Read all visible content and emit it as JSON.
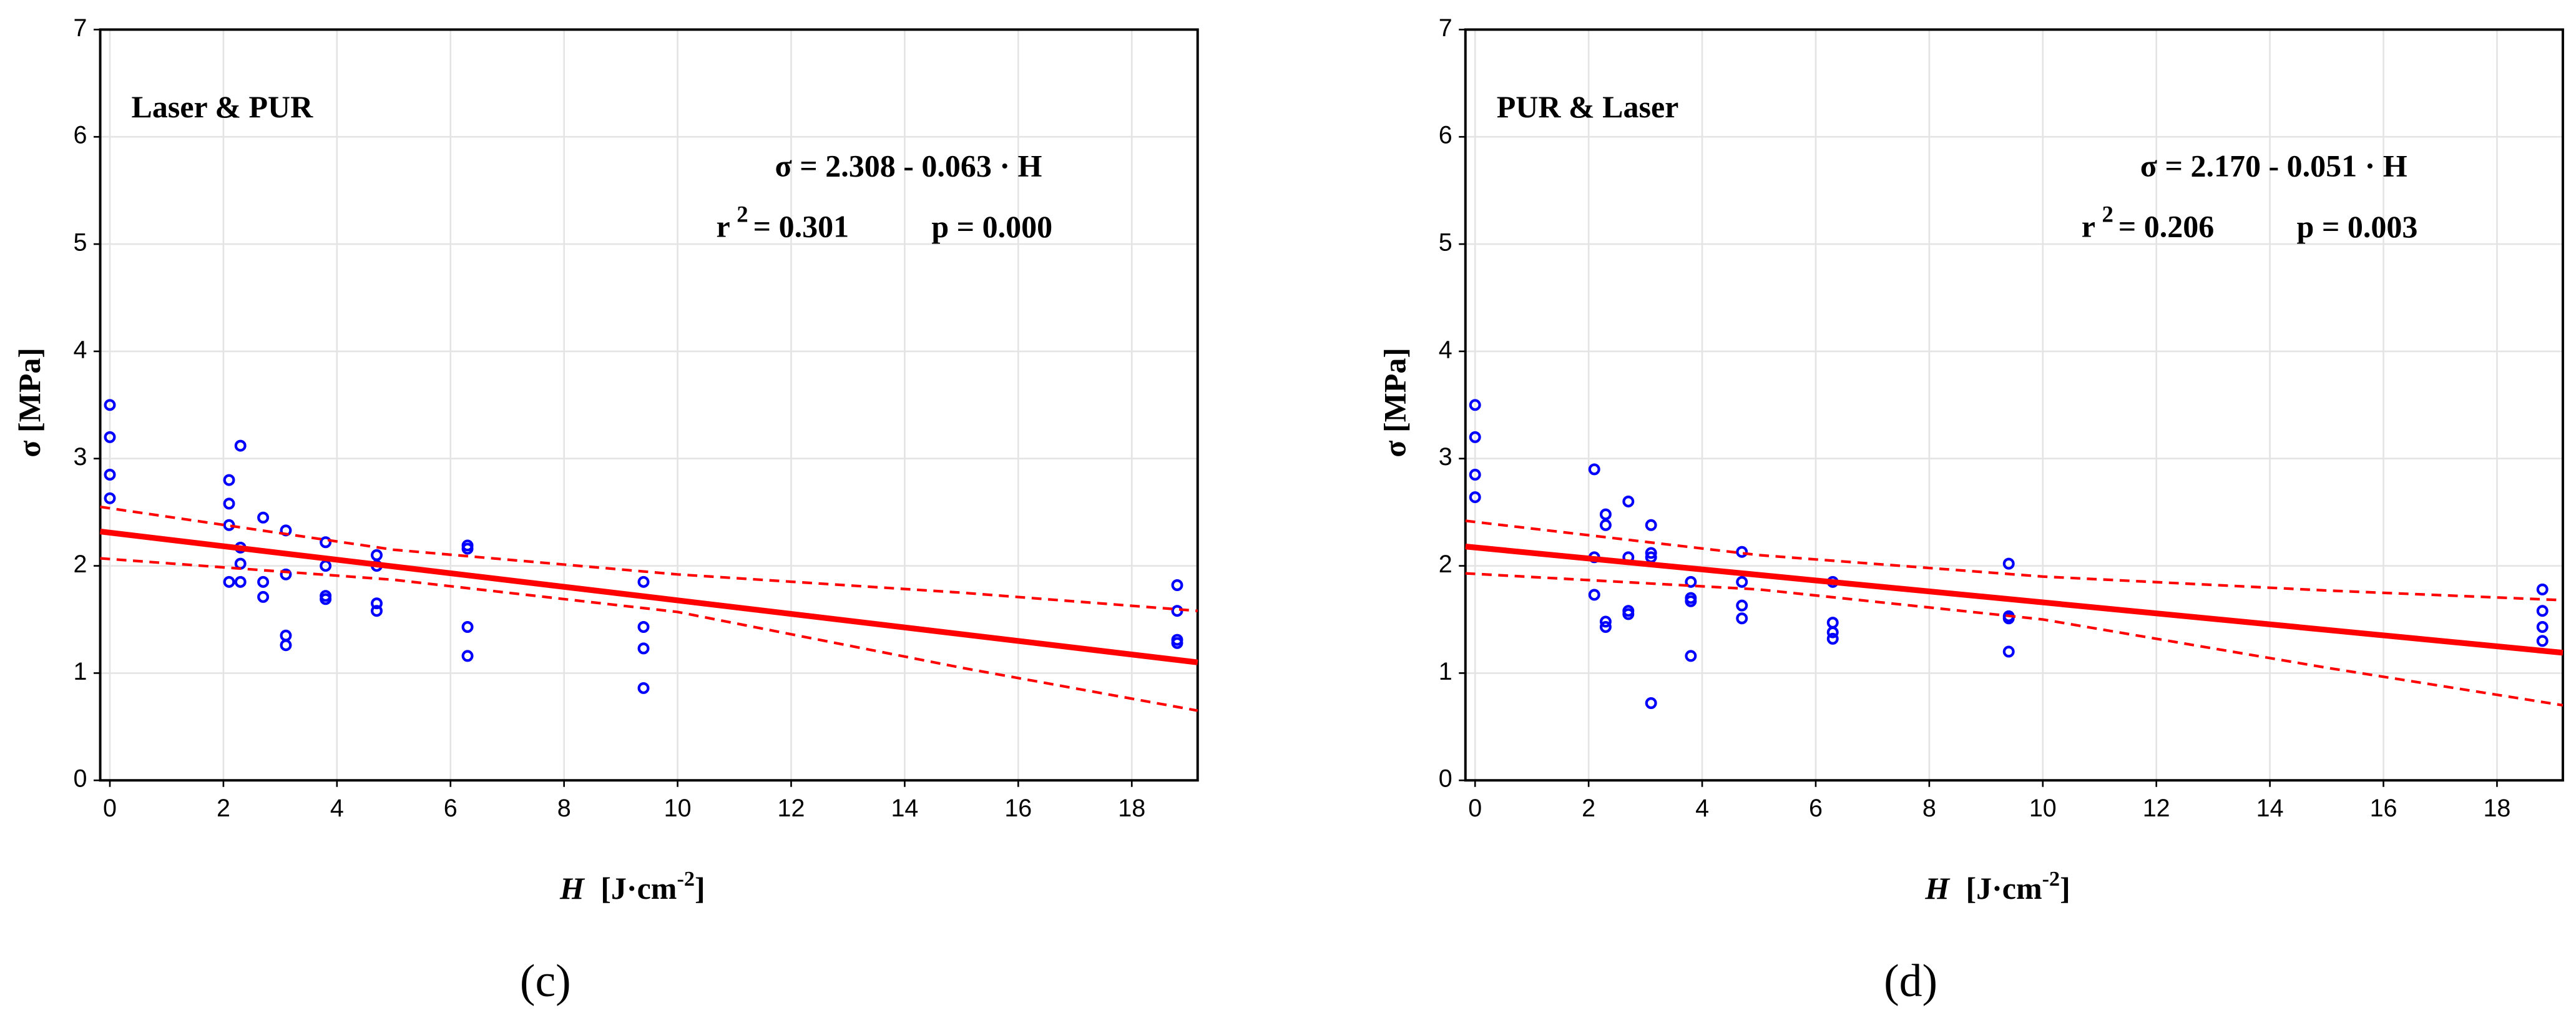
{
  "chart_data": [
    {
      "type": "scatter",
      "panel": "(c)",
      "annotation": "Laser & PUR",
      "equation": "σ = 2.308 - 0.063 · H",
      "r2_label": [
        "r",
        "2",
        "= 0.301"
      ],
      "p_label": "p = 0.000",
      "y_label": "σ [MPa]",
      "x_label": [
        "H",
        "[J·cm",
        "-2",
        "]"
      ],
      "xlim": [
        -0.17,
        19.16
      ],
      "ylim": [
        0,
        7
      ],
      "xticks": [
        0,
        2,
        4,
        6,
        8,
        10,
        12,
        14,
        16,
        18
      ],
      "yticks": [
        0,
        1,
        2,
        3,
        4,
        5,
        6,
        7
      ],
      "grid": true,
      "series": [
        {
          "kind": "points",
          "color": "#0000ff",
          "x": [
            0,
            0,
            0,
            0,
            2.1,
            2.1,
            2.1,
            2.1,
            2.3,
            2.3,
            2.3,
            2.3,
            2.7,
            2.7,
            2.7,
            3.1,
            3.1,
            3.1,
            3.1,
            3.8,
            3.8,
            3.8,
            3.8,
            4.7,
            4.7,
            4.7,
            4.7,
            6.3,
            6.3,
            6.3,
            6.3,
            9.4,
            9.4,
            9.4,
            9.4,
            18.8,
            18.8,
            18.8,
            18.8
          ],
          "values": [
            3.5,
            3.2,
            2.85,
            2.63,
            2.8,
            2.58,
            2.38,
            1.85,
            3.12,
            2.17,
            2.02,
            1.85,
            2.45,
            1.85,
            1.71,
            2.33,
            1.92,
            1.35,
            1.26,
            2.22,
            2.0,
            1.72,
            1.69,
            2.1,
            2.0,
            1.65,
            1.58,
            2.19,
            2.16,
            1.43,
            1.16,
            1.85,
            1.43,
            1.23,
            0.86,
            1.82,
            1.58,
            1.31,
            1.28
          ]
        },
        {
          "kind": "line",
          "color": "#ff0000",
          "x": [
            -0.17,
            19.16
          ],
          "values": [
            2.32,
            1.1
          ]
        },
        {
          "kind": "dashed",
          "color": "#ff0000",
          "x": [
            -0.17,
            5,
            10,
            15,
            19.16
          ],
          "values": [
            2.55,
            2.15,
            1.92,
            1.75,
            1.58
          ]
        },
        {
          "kind": "dashed",
          "color": "#ff0000",
          "x": [
            -0.17,
            5,
            10,
            15,
            19.16
          ],
          "values": [
            2.07,
            1.87,
            1.57,
            1.05,
            0.65
          ]
        }
      ]
    },
    {
      "type": "scatter",
      "panel": "(d)",
      "annotation": "PUR & Laser",
      "equation": "σ = 2.170 - 0.051 · H",
      "r2_label": [
        "r",
        "2",
        "= 0.206"
      ],
      "p_label": "p = 0.003",
      "y_label": "σ [MPa]",
      "x_label": [
        "H",
        "[J·cm",
        "-2",
        "]"
      ],
      "xlim": [
        -0.17,
        19.16
      ],
      "ylim": [
        0,
        7
      ],
      "xticks": [
        0,
        2,
        4,
        6,
        8,
        10,
        12,
        14,
        16,
        18
      ],
      "yticks": [
        0,
        1,
        2,
        3,
        4,
        5,
        6,
        7
      ],
      "grid": true,
      "series": [
        {
          "kind": "points",
          "color": "#0000ff",
          "x": [
            0,
            0,
            0,
            0,
            2.1,
            2.1,
            2.1,
            2.3,
            2.3,
            2.3,
            2.3,
            2.7,
            2.7,
            2.7,
            2.7,
            3.1,
            3.1,
            3.1,
            3.1,
            3.8,
            3.8,
            3.8,
            3.8,
            4.7,
            4.7,
            4.7,
            4.7,
            6.3,
            6.3,
            6.3,
            6.3,
            9.4,
            9.4,
            9.4,
            9.4,
            18.8,
            18.8,
            18.8,
            18.8
          ],
          "values": [
            3.5,
            3.2,
            2.85,
            2.64,
            2.9,
            2.08,
            1.73,
            2.48,
            2.38,
            1.48,
            1.43,
            2.6,
            2.08,
            1.58,
            1.55,
            2.38,
            2.12,
            2.08,
            0.72,
            1.85,
            1.7,
            1.67,
            1.16,
            2.13,
            1.85,
            1.63,
            1.51,
            1.85,
            1.47,
            1.38,
            1.32,
            2.02,
            1.53,
            1.51,
            1.2,
            1.78,
            1.58,
            1.43,
            1.3
          ]
        },
        {
          "kind": "line",
          "color": "#ff0000",
          "x": [
            -0.17,
            19.16
          ],
          "values": [
            2.18,
            1.19
          ]
        },
        {
          "kind": "dashed",
          "color": "#ff0000",
          "x": [
            -0.17,
            5,
            10,
            15,
            19.16
          ],
          "values": [
            2.42,
            2.1,
            1.9,
            1.77,
            1.68
          ]
        },
        {
          "kind": "dashed",
          "color": "#ff0000",
          "x": [
            -0.17,
            5,
            10,
            15,
            19.16
          ],
          "values": [
            1.93,
            1.78,
            1.5,
            1.05,
            0.7
          ]
        }
      ]
    }
  ]
}
